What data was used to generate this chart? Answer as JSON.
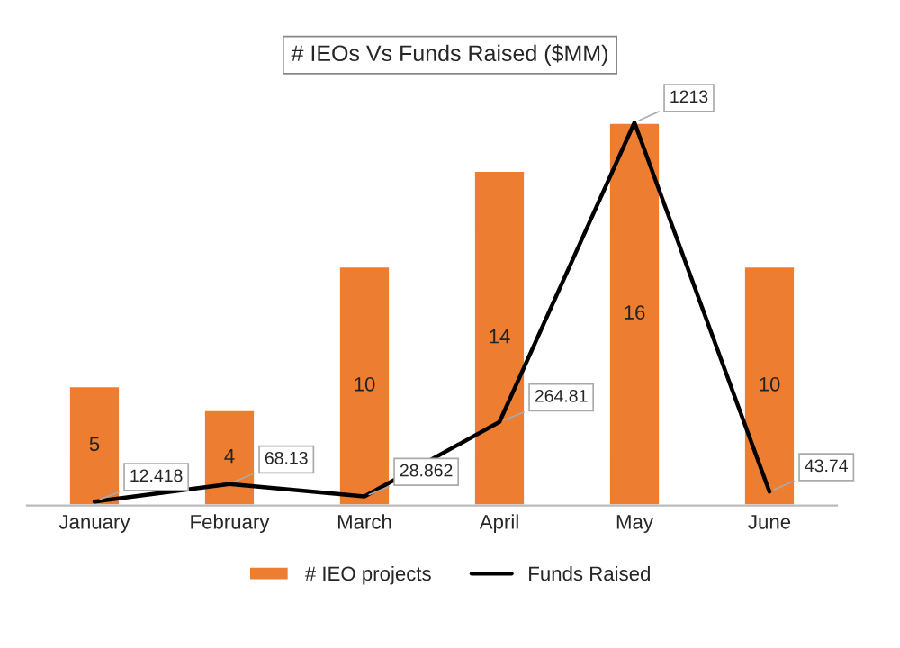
{
  "chart_data": {
    "type": "bar",
    "title": "# IEOs Vs Funds Raised ($MM)",
    "categories": [
      "January",
      "February",
      "March",
      "April",
      "May",
      "June"
    ],
    "series": [
      {
        "name": "# IEO projects",
        "color": "#ed7d31",
        "values": [
          5,
          4,
          10,
          14,
          16,
          10
        ]
      },
      {
        "name": "Funds Raised",
        "type": "line",
        "color": "#000000",
        "axis": "y2",
        "values": [
          12.418,
          68.13,
          28.862,
          264.81,
          1213,
          43.74
        ]
      }
    ],
    "data_labels": true,
    "legend": "bottom",
    "grid": false
  }
}
